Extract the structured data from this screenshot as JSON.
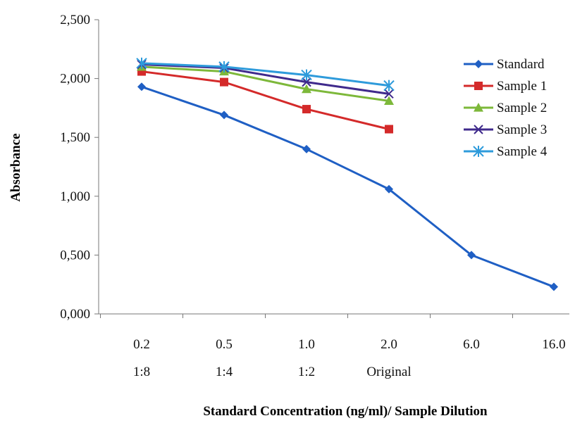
{
  "chart_data": {
    "type": "line",
    "title": "",
    "xlabel": "Standard Concentration (ng/ml)/ Sample Dilution",
    "ylabel": "Absorbance",
    "categories": [
      "0.2",
      "0.5",
      "1.0",
      "2.0",
      "6.0",
      "16.0"
    ],
    "dilution_labels": [
      "1:8",
      "1:4",
      "1:2",
      "Original",
      "",
      ""
    ],
    "y_ticks": [
      "0,000",
      "0,500",
      "1,000",
      "1,500",
      "2,000",
      "2,500"
    ],
    "ylim": [
      0,
      2.5
    ],
    "y_tick_step": 0.5,
    "grid": false,
    "legend_position": "right",
    "series": [
      {
        "name": "Standard",
        "color": "#1F5FC4",
        "marker": "diamond",
        "values": [
          1.93,
          1.69,
          1.4,
          1.06,
          0.5,
          0.23
        ]
      },
      {
        "name": "Sample 1",
        "color": "#D42A2A",
        "marker": "square",
        "values": [
          2.06,
          1.97,
          1.74,
          1.57,
          null,
          null
        ]
      },
      {
        "name": "Sample 2",
        "color": "#7DB83A",
        "marker": "triangle",
        "values": [
          2.1,
          2.06,
          1.91,
          1.81,
          null,
          null
        ]
      },
      {
        "name": "Sample 3",
        "color": "#3F2A8C",
        "marker": "x",
        "values": [
          2.12,
          2.09,
          1.97,
          1.87,
          null,
          null
        ]
      },
      {
        "name": "Sample 4",
        "color": "#2E9BDB",
        "marker": "asterisk",
        "values": [
          2.13,
          2.1,
          2.03,
          1.94,
          null,
          null
        ]
      }
    ]
  }
}
